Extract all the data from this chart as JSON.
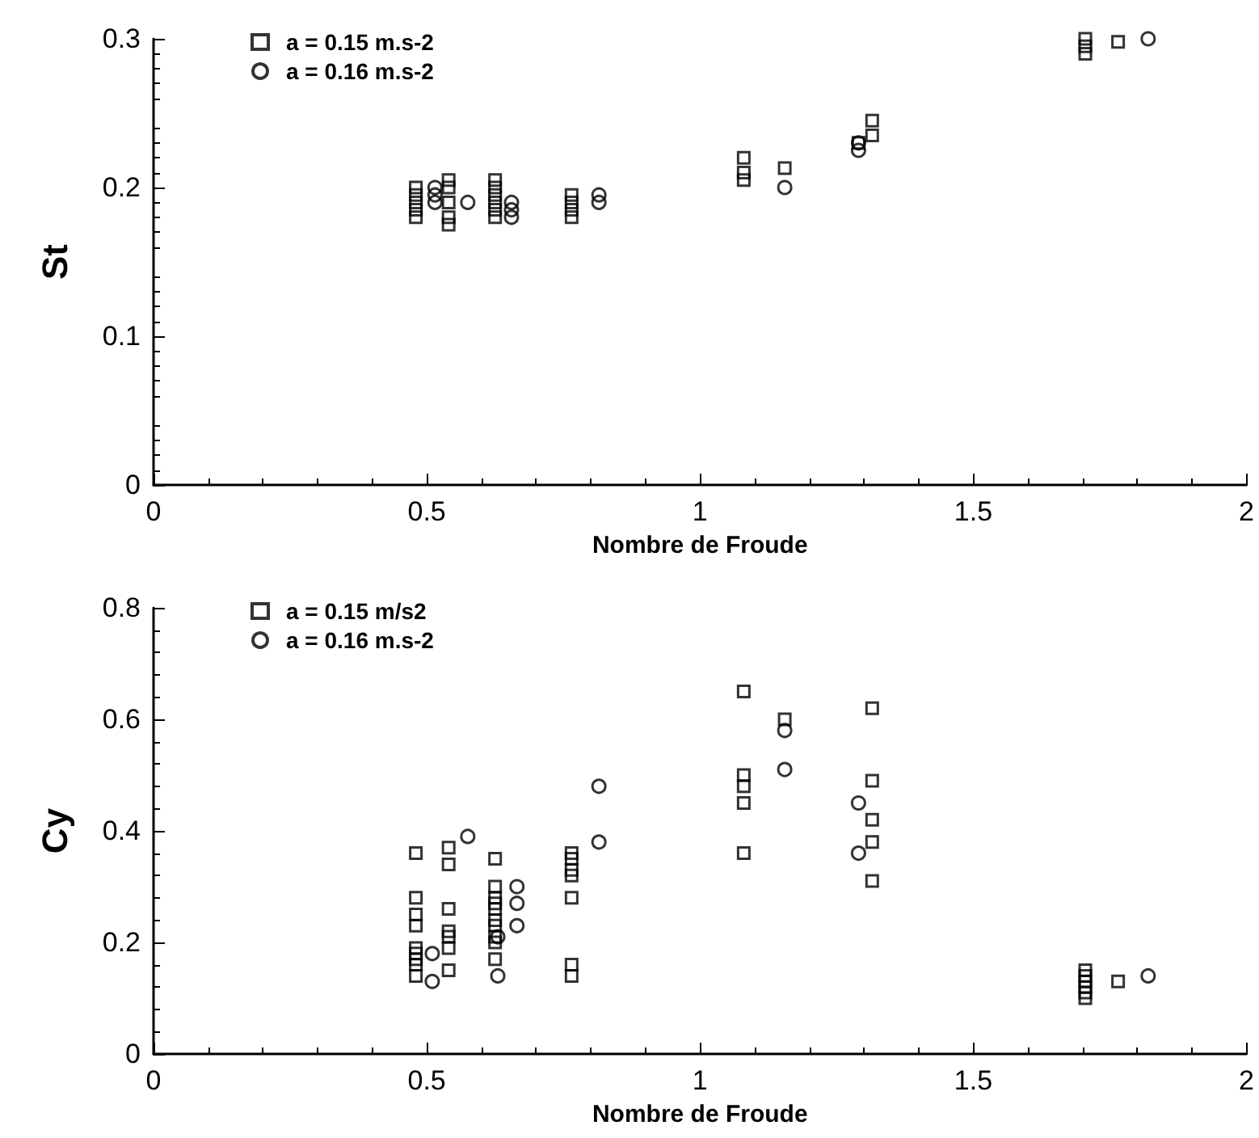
{
  "chart_data": [
    {
      "type": "scatter",
      "xlabel": "Nombre de Froude",
      "ylabel": "St",
      "xlim": [
        0,
        2
      ],
      "xticks": [
        0,
        0.5,
        1,
        1.5,
        2
      ],
      "ylim": [
        0,
        0.3
      ],
      "yticks": [
        0,
        0.1,
        0.2,
        0.3
      ],
      "grid": false,
      "legend": "top left",
      "series": [
        {
          "name": "a = 0.15 m.s-2",
          "color": "#000000",
          "marker": "square",
          "x": [
            0.48,
            0.48,
            0.48,
            0.48,
            0.48,
            0.54,
            0.54,
            0.54,
            0.54,
            0.54,
            0.625,
            0.625,
            0.625,
            0.625,
            0.625,
            0.625,
            0.765,
            0.765,
            0.765,
            0.765,
            1.08,
            1.08,
            1.08,
            1.155,
            1.29,
            1.315,
            1.315,
            1.705,
            1.705,
            1.705,
            1.765
          ],
          "values": [
            0.18,
            0.185,
            0.19,
            0.195,
            0.2,
            0.175,
            0.18,
            0.19,
            0.2,
            0.205,
            0.18,
            0.185,
            0.19,
            0.195,
            0.2,
            0.205,
            0.18,
            0.185,
            0.19,
            0.195,
            0.205,
            0.21,
            0.22,
            0.213,
            0.23,
            0.235,
            0.245,
            0.29,
            0.295,
            0.3,
            0.298
          ]
        },
        {
          "name": "a = 0.16 m.s-2",
          "color": "#000000",
          "marker": "circle",
          "x": [
            0.515,
            0.515,
            0.515,
            0.575,
            0.655,
            0.655,
            0.655,
            0.815,
            0.815,
            1.155,
            1.29,
            1.29,
            1.82
          ],
          "values": [
            0.2,
            0.195,
            0.19,
            0.19,
            0.19,
            0.185,
            0.18,
            0.19,
            0.195,
            0.2,
            0.225,
            0.23,
            0.3
          ]
        }
      ]
    },
    {
      "type": "scatter",
      "xlabel": "Nombre de Froude",
      "ylabel": "Cy",
      "xlim": [
        0,
        2
      ],
      "xticks": [
        0,
        0.5,
        1,
        1.5,
        2
      ],
      "ylim": [
        0,
        0.8
      ],
      "yticks": [
        0,
        0.2,
        0.4,
        0.6,
        0.8
      ],
      "grid": false,
      "legend": "top left",
      "series": [
        {
          "name": "a = 0.15 m/s2",
          "color": "#000000",
          "marker": "square",
          "x": [
            0.48,
            0.48,
            0.48,
            0.48,
            0.48,
            0.48,
            0.48,
            0.48,
            0.48,
            0.54,
            0.54,
            0.54,
            0.54,
            0.54,
            0.54,
            0.54,
            0.625,
            0.625,
            0.625,
            0.625,
            0.625,
            0.625,
            0.625,
            0.625,
            0.625,
            0.625,
            0.765,
            0.765,
            0.765,
            0.765,
            0.765,
            0.765,
            0.765,
            1.08,
            1.08,
            1.08,
            1.08,
            1.08,
            1.155,
            1.315,
            1.315,
            1.315,
            1.315,
            1.315,
            1.705,
            1.705,
            1.705,
            1.705,
            1.705,
            1.705,
            1.765
          ],
          "values": [
            0.36,
            0.28,
            0.25,
            0.23,
            0.19,
            0.18,
            0.17,
            0.16,
            0.14,
            0.37,
            0.34,
            0.26,
            0.22,
            0.21,
            0.19,
            0.15,
            0.35,
            0.3,
            0.28,
            0.27,
            0.26,
            0.24,
            0.23,
            0.21,
            0.2,
            0.17,
            0.36,
            0.35,
            0.33,
            0.32,
            0.28,
            0.16,
            0.14,
            0.65,
            0.5,
            0.48,
            0.45,
            0.36,
            0.6,
            0.62,
            0.49,
            0.42,
            0.38,
            0.31,
            0.1,
            0.11,
            0.12,
            0.13,
            0.14,
            0.15,
            0.13
          ]
        },
        {
          "name": "a = 0.16 m.s-2",
          "color": "#000000",
          "marker": "circle",
          "x": [
            0.51,
            0.51,
            0.575,
            0.63,
            0.63,
            0.665,
            0.665,
            0.665,
            0.815,
            0.815,
            1.155,
            1.155,
            1.29,
            1.29,
            1.82
          ],
          "values": [
            0.18,
            0.13,
            0.39,
            0.21,
            0.14,
            0.3,
            0.27,
            0.23,
            0.48,
            0.38,
            0.58,
            0.51,
            0.45,
            0.36,
            0.14
          ]
        }
      ]
    }
  ]
}
